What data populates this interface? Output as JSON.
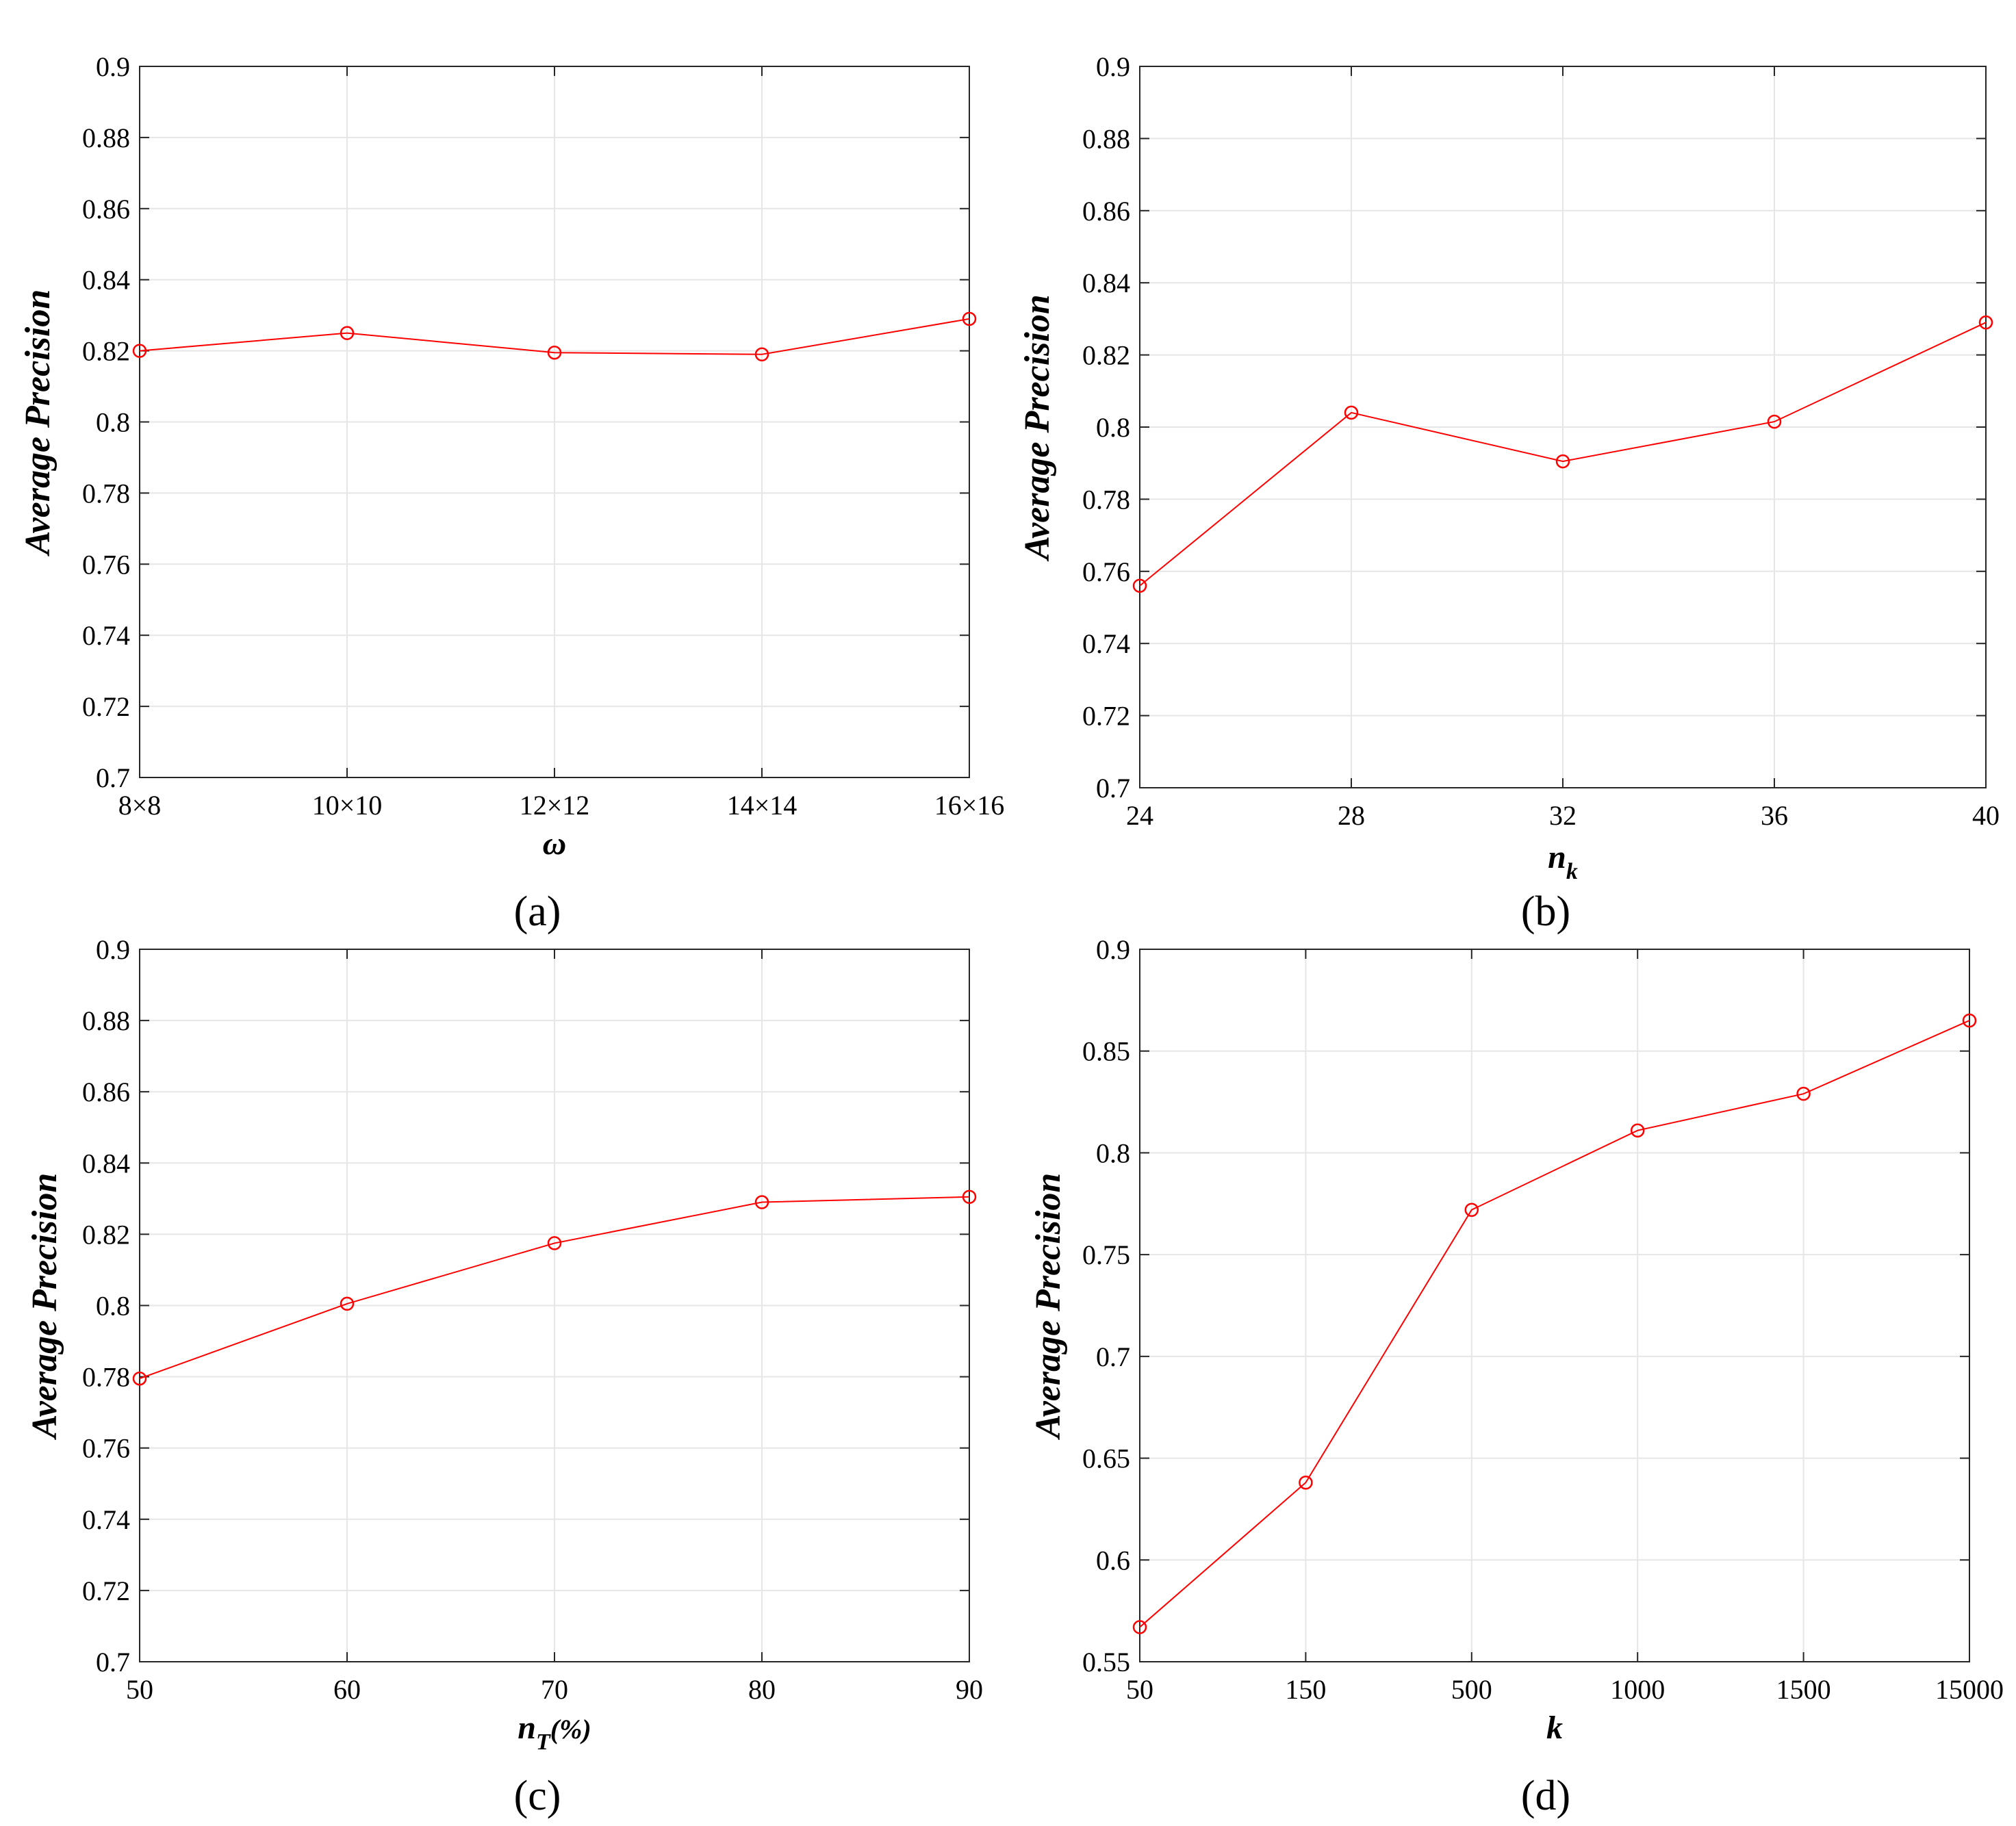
{
  "style": {
    "line_color": "#ff0000",
    "grid_color": "#e6e6e6",
    "axis_color": "#262626"
  },
  "chart_data": [
    {
      "type": "line",
      "caption": "(a)",
      "categories": [
        "8×8",
        "10×10",
        "12×12",
        "14×14",
        "16×16"
      ],
      "values": [
        0.82,
        0.825,
        0.8195,
        0.819,
        0.829
      ],
      "xlabel": "ω",
      "ylabel": "Average Precision",
      "ylim": [
        0.7,
        0.9
      ],
      "yticks": [
        0.7,
        0.72,
        0.74,
        0.76,
        0.78,
        0.8,
        0.82,
        0.84,
        0.86,
        0.88,
        0.9
      ],
      "yticklabels": [
        "0.7",
        "0.72",
        "0.74",
        "0.76",
        "0.78",
        "0.8",
        "0.82",
        "0.84",
        "0.86",
        "0.88",
        "0.9"
      ],
      "grid": true,
      "marker": "circle"
    },
    {
      "type": "line",
      "caption": "(b)",
      "categories": [
        "24",
        "28",
        "32",
        "36",
        "40"
      ],
      "values": [
        0.756,
        0.804,
        0.7905,
        0.8015,
        0.829
      ],
      "xlabel": "n",
      "xlabel_sub": "k",
      "ylabel": "Average Precision",
      "ylim": [
        0.7,
        0.9
      ],
      "yticks": [
        0.7,
        0.72,
        0.74,
        0.76,
        0.78,
        0.8,
        0.82,
        0.84,
        0.86,
        0.88,
        0.9
      ],
      "yticklabels": [
        "0.7",
        "0.72",
        "0.74",
        "0.76",
        "0.78",
        "0.8",
        "0.82",
        "0.84",
        "0.86",
        "0.88",
        "0.9"
      ],
      "grid": true,
      "marker": "circle"
    },
    {
      "type": "line",
      "caption": "(c)",
      "categories": [
        "50",
        "60",
        "70",
        "80",
        "90"
      ],
      "values": [
        0.7795,
        0.8005,
        0.8175,
        0.829,
        0.8305
      ],
      "xlabel": "n",
      "xlabel_sub": "T",
      "xlabel_suffix": "(%)",
      "ylabel": "Average Precision",
      "ylim": [
        0.7,
        0.9
      ],
      "yticks": [
        0.7,
        0.72,
        0.74,
        0.76,
        0.78,
        0.8,
        0.82,
        0.84,
        0.86,
        0.88,
        0.9
      ],
      "yticklabels": [
        "0.7",
        "0.72",
        "0.74",
        "0.76",
        "0.78",
        "0.8",
        "0.82",
        "0.84",
        "0.86",
        "0.88",
        "0.9"
      ],
      "grid": true,
      "marker": "circle"
    },
    {
      "type": "line",
      "caption": "(d)",
      "categories": [
        "50",
        "150",
        "500",
        "1000",
        "1500",
        "15000"
      ],
      "values": [
        0.567,
        0.638,
        0.772,
        0.811,
        0.829,
        0.865
      ],
      "xlabel": "k",
      "ylabel": "Average Precision",
      "ylim": [
        0.55,
        0.9
      ],
      "yticks": [
        0.55,
        0.6,
        0.65,
        0.7,
        0.75,
        0.8,
        0.85,
        0.9
      ],
      "yticklabels": [
        "0.55",
        "0.6",
        "0.65",
        "0.7",
        "0.75",
        "0.8",
        "0.85",
        "0.9"
      ],
      "grid": true,
      "marker": "circle"
    }
  ]
}
